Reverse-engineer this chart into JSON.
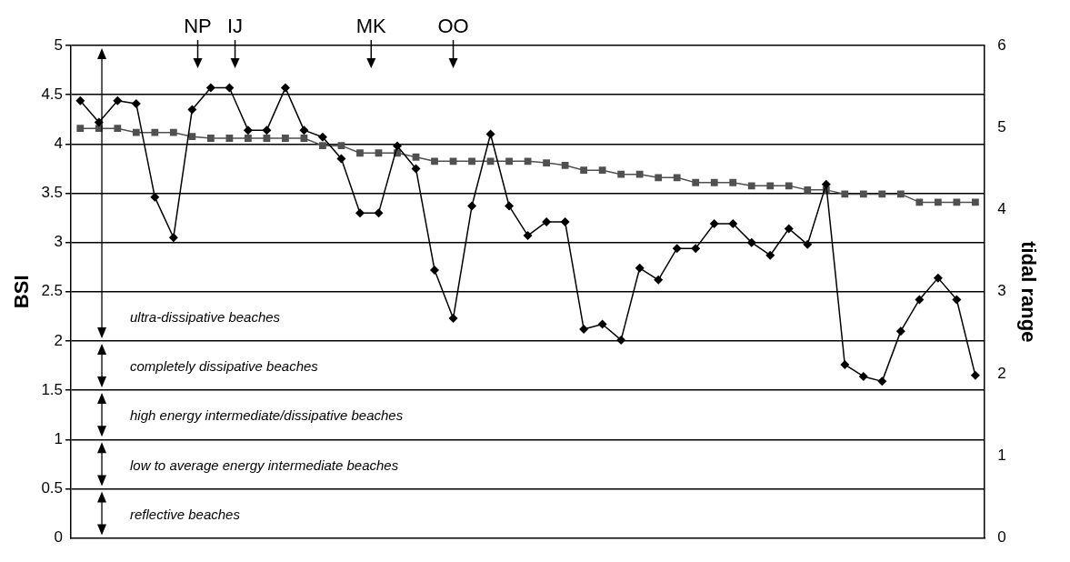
{
  "chart_data": {
    "type": "line",
    "ylabel": "BSI",
    "y2label": "tidal range",
    "categories": [
      null,
      null,
      null,
      null,
      null,
      null,
      null,
      null,
      null,
      null,
      null,
      null,
      null,
      null,
      null,
      null,
      null,
      null,
      null,
      null,
      null,
      null,
      null,
      null,
      null,
      null,
      null,
      null,
      null,
      null,
      null,
      null,
      null,
      null,
      null,
      null,
      null,
      null,
      null,
      null,
      null,
      null,
      null,
      null,
      null,
      null,
      null,
      null,
      null
    ],
    "series": [
      {
        "color": "#000000",
        "marker": "diamond",
        "values": [
          4.44,
          4.22,
          4.44,
          4.41,
          3.46,
          3.05,
          4.35,
          4.57,
          4.57,
          4.14,
          4.14,
          4.57,
          4.14,
          4.07,
          3.85,
          3.3,
          3.3,
          3.98,
          3.75,
          2.72,
          2.23,
          3.37,
          4.1,
          3.37,
          3.07,
          3.21,
          3.21,
          2.12,
          2.17,
          2.01,
          2.74,
          2.62,
          2.94,
          2.94,
          3.19,
          3.19,
          3.0,
          2.87,
          3.14,
          2.98,
          3.59,
          1.76,
          1.64,
          1.59,
          2.1,
          2.42,
          2.64,
          2.42,
          1.65
        ]
      },
      {
        "color": "#505050",
        "marker": "square",
        "axis": "y2",
        "values": [
          4.99,
          4.99,
          4.99,
          4.94,
          4.94,
          4.94,
          4.89,
          4.87,
          4.87,
          4.87,
          4.87,
          4.87,
          4.87,
          4.78,
          4.78,
          4.69,
          4.69,
          4.69,
          4.64,
          4.59,
          4.59,
          4.59,
          4.59,
          4.59,
          4.59,
          4.57,
          4.54,
          4.48,
          4.48,
          4.43,
          4.43,
          4.39,
          4.39,
          4.33,
          4.33,
          4.33,
          4.29,
          4.29,
          4.29,
          4.24,
          4.24,
          4.19,
          4.19,
          4.19,
          4.19,
          4.09,
          4.09,
          4.09,
          4.09
        ]
      }
    ],
    "ylim": [
      0,
      5
    ],
    "yticks": [
      0,
      0.5,
      1,
      1.5,
      2,
      2.5,
      3,
      3.5,
      4,
      4.5,
      5
    ],
    "y2lim": [
      0,
      6
    ],
    "y2ticks": [
      0,
      1,
      2,
      3,
      4,
      5,
      6
    ],
    "grid": "y",
    "annotations": [
      "NP",
      "IJ",
      "MK",
      "OO",
      "ultra-dissipative beaches",
      "completely dissipative beaches",
      "high energy intermediate/dissipative beaches",
      "low to average energy intermediate beaches",
      "reflective beaches"
    ]
  }
}
